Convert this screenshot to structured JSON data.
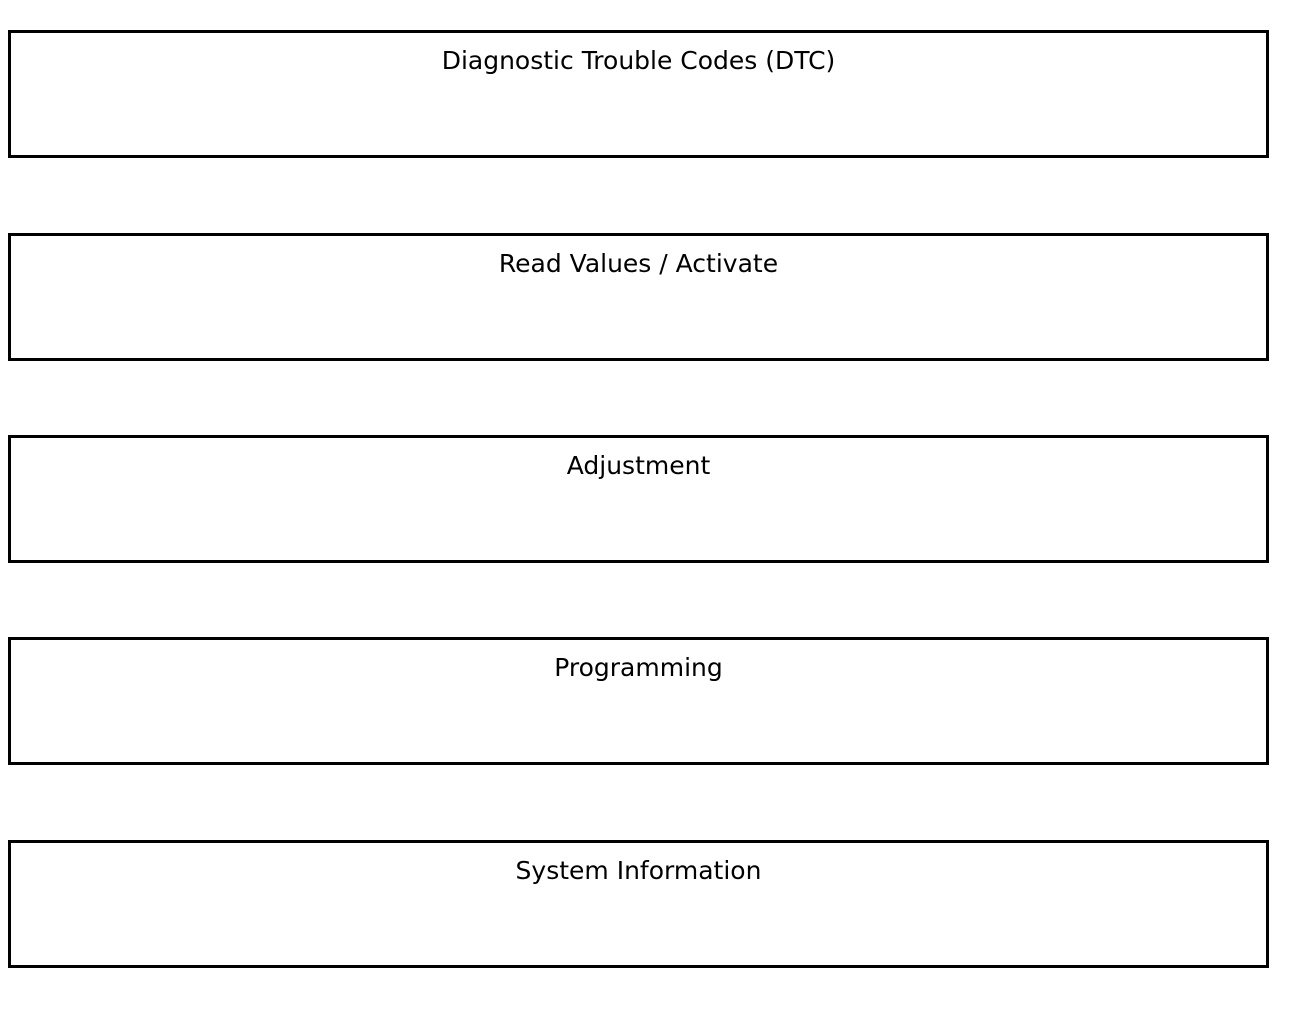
{
  "menu": {
    "items": [
      {
        "label": "Diagnostic Trouble Codes (DTC)"
      },
      {
        "label": "Read Values / Activate"
      },
      {
        "label": "Adjustment"
      },
      {
        "label": "Programming"
      },
      {
        "label": "System Information"
      }
    ]
  }
}
